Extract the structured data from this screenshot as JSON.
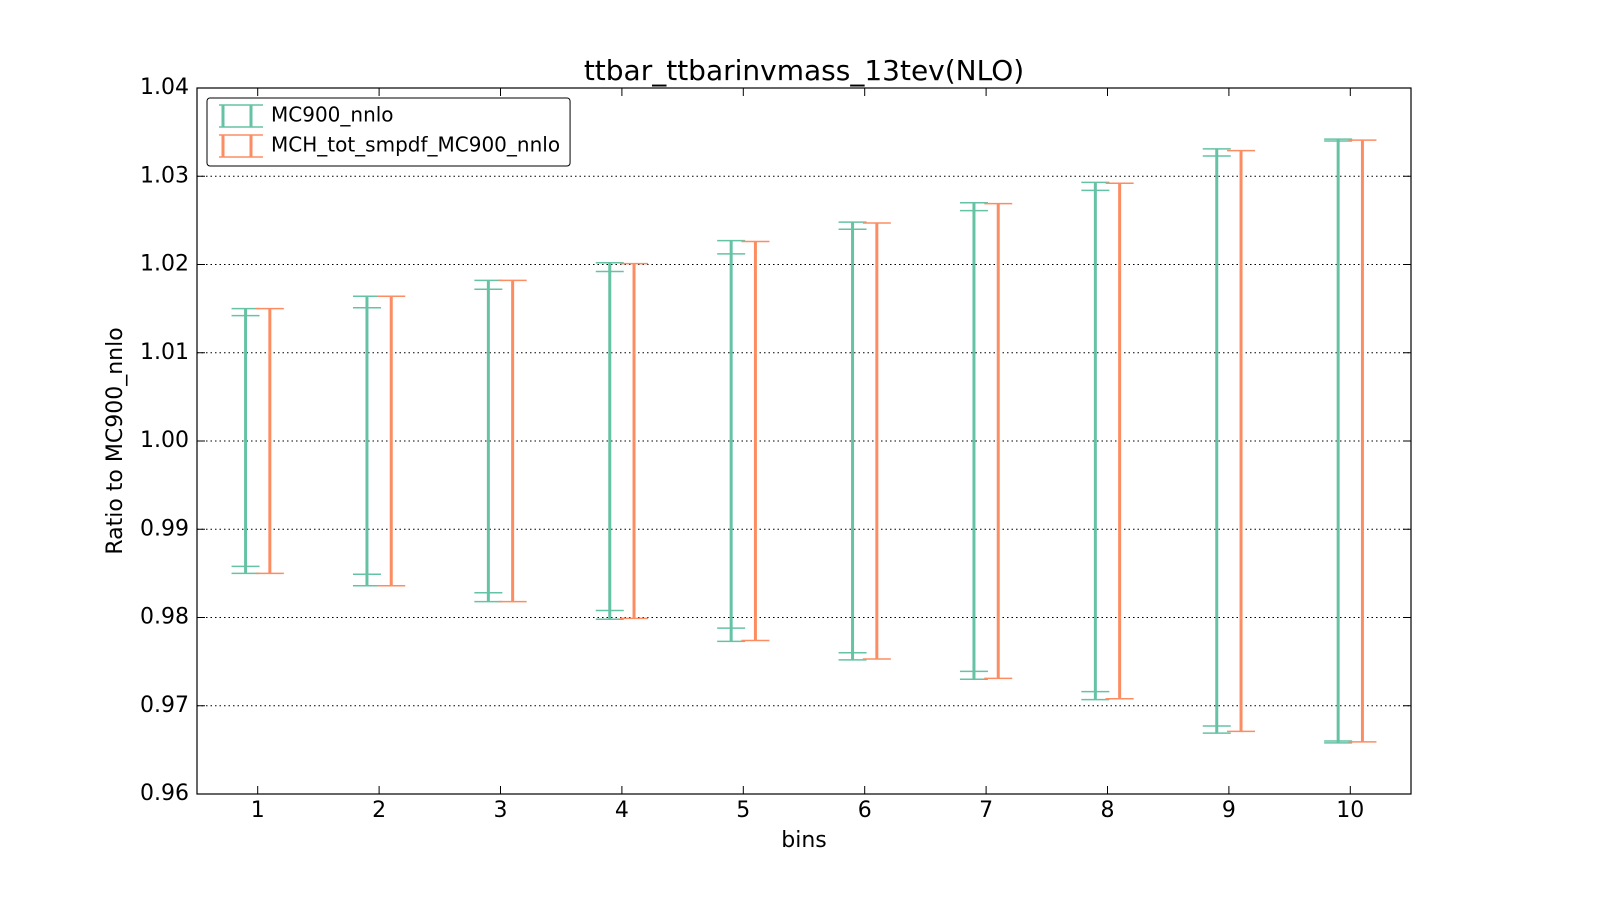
{
  "chart_data": {
    "type": "errorbar",
    "title": "ttbar_ttbarinvmass_13tev(NLO)",
    "x_label": "bins",
    "y_label": "Ratio to MC900_nnlo",
    "x": [
      1,
      2,
      3,
      4,
      5,
      6,
      7,
      8,
      9,
      10
    ],
    "xlim": [
      0.5,
      10.5
    ],
    "xticks": [
      1,
      2,
      3,
      4,
      5,
      6,
      7,
      8,
      9,
      10
    ],
    "ylim": [
      0.96,
      1.04
    ],
    "yticks": [
      0.96,
      0.97,
      0.98,
      0.99,
      {
        "value": 1,
        "label": "1.00"
      },
      1.01,
      1.02,
      1.03,
      1.04
    ],
    "grid": true,
    "legend": "upper left",
    "series": [
      {
        "name": "MC900_nnlo",
        "color": "#66c2a5",
        "values": [
          1,
          1,
          1,
          1,
          1,
          1,
          1,
          1,
          1,
          1
        ],
        "errors": [
          0.015,
          0.0164,
          0.0182,
          0.0202,
          0.0227,
          0.0248,
          0.027,
          0.0293,
          0.0331,
          0.0342
        ],
        "inner_errors": [
          0.0142,
          0.0151,
          0.0172,
          0.0192,
          0.0212,
          0.024,
          0.0261,
          0.0284,
          0.0323,
          0.034
        ]
      },
      {
        "name": "MCH_tot_smpdf_MC900_nnlo",
        "color": "#fc8d62",
        "values": [
          1,
          1,
          1,
          1,
          1,
          1,
          1,
          1,
          1,
          1
        ],
        "errors": [
          0.015,
          0.0164,
          0.0182,
          0.0201,
          0.0226,
          0.0247,
          0.0269,
          0.0292,
          0.0329,
          0.0341
        ]
      }
    ]
  }
}
